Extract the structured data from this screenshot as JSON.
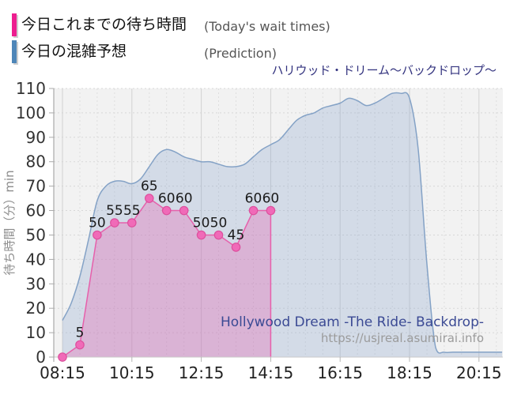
{
  "legend": {
    "today_jp": "今日これまでの待ち時間",
    "today_en": "(Today's wait times)",
    "prediction_jp": "今日の混雑予想",
    "prediction_en": "(Prediction)",
    "today_color": "#ed1e8f",
    "prediction_color": "#4e86b8"
  },
  "title": "ハリウッド・ドリーム～バックドロップ～",
  "watermark": {
    "ride_name": "Hollywood Dream -The Ride- Backdrop-",
    "url": "https://usjreal.asumirai.info"
  },
  "chart_data": {
    "type": "area",
    "title": "ハリウッド・ドリーム～バックドロップ～",
    "xlabel": "",
    "ylabel": "待ち時間（分）min",
    "ylim": [
      0,
      110
    ],
    "ytick_step": 10,
    "grid": true,
    "legend_position": "top-left",
    "xticks": [
      "08:15",
      "10:15",
      "12:15",
      "14:15",
      "16:15",
      "18:15",
      "20:15"
    ],
    "plot_bg": "#f2f2f2",
    "series": [
      {
        "name": "今日の混雑予想",
        "type": "prediction-area",
        "smooth": true,
        "line_color": "#84a2c6",
        "fill_color": "rgba(138,167,204,0.30)",
        "points": [
          [
            "08:15",
            15
          ],
          [
            "08:30",
            22
          ],
          [
            "08:45",
            33
          ],
          [
            "09:00",
            48
          ],
          [
            "09:15",
            64
          ],
          [
            "09:30",
            70
          ],
          [
            "09:45",
            72
          ],
          [
            "10:00",
            72
          ],
          [
            "10:15",
            71
          ],
          [
            "10:30",
            73
          ],
          [
            "10:45",
            78
          ],
          [
            "11:00",
            83
          ],
          [
            "11:15",
            85
          ],
          [
            "11:30",
            84
          ],
          [
            "11:45",
            82
          ],
          [
            "12:00",
            81
          ],
          [
            "12:15",
            80
          ],
          [
            "12:30",
            80
          ],
          [
            "12:45",
            79
          ],
          [
            "13:00",
            78
          ],
          [
            "13:15",
            78
          ],
          [
            "13:30",
            79
          ],
          [
            "13:45",
            82
          ],
          [
            "14:00",
            85
          ],
          [
            "14:15",
            87
          ],
          [
            "14:30",
            89
          ],
          [
            "14:45",
            93
          ],
          [
            "15:00",
            97
          ],
          [
            "15:15",
            99
          ],
          [
            "15:30",
            100
          ],
          [
            "15:45",
            102
          ],
          [
            "16:00",
            103
          ],
          [
            "16:15",
            104
          ],
          [
            "16:30",
            106
          ],
          [
            "16:45",
            105
          ],
          [
            "17:00",
            103
          ],
          [
            "17:15",
            104
          ],
          [
            "17:30",
            106
          ],
          [
            "17:45",
            108
          ],
          [
            "18:00",
            108
          ],
          [
            "18:15",
            106
          ],
          [
            "18:30",
            85
          ],
          [
            "18:45",
            38
          ],
          [
            "19:00",
            4
          ],
          [
            "19:15",
            2
          ],
          [
            "19:30",
            2
          ],
          [
            "19:45",
            2
          ],
          [
            "20:00",
            2
          ],
          [
            "20:15",
            2
          ],
          [
            "20:30",
            2
          ],
          [
            "20:45",
            2
          ],
          [
            "20:55",
            2
          ]
        ]
      },
      {
        "name": "今日これまでの待ち時間",
        "type": "actual-line",
        "smooth": false,
        "line_color": "#e660ab",
        "fill_color": "rgba(234,97,176,0.33)",
        "marker_fill": "#f06ab8",
        "marker_stroke": "#dd4f9d",
        "show_value_labels": true,
        "points": [
          [
            "08:15",
            0
          ],
          [
            "08:45",
            5
          ],
          [
            "09:15",
            50
          ],
          [
            "09:45",
            55
          ],
          [
            "10:15",
            55
          ],
          [
            "10:45",
            65
          ],
          [
            "11:15",
            60
          ],
          [
            "11:45",
            60
          ],
          [
            "12:15",
            50
          ],
          [
            "12:45",
            50
          ],
          [
            "13:15",
            45
          ],
          [
            "13:45",
            60
          ],
          [
            "14:15",
            60
          ]
        ]
      }
    ]
  }
}
